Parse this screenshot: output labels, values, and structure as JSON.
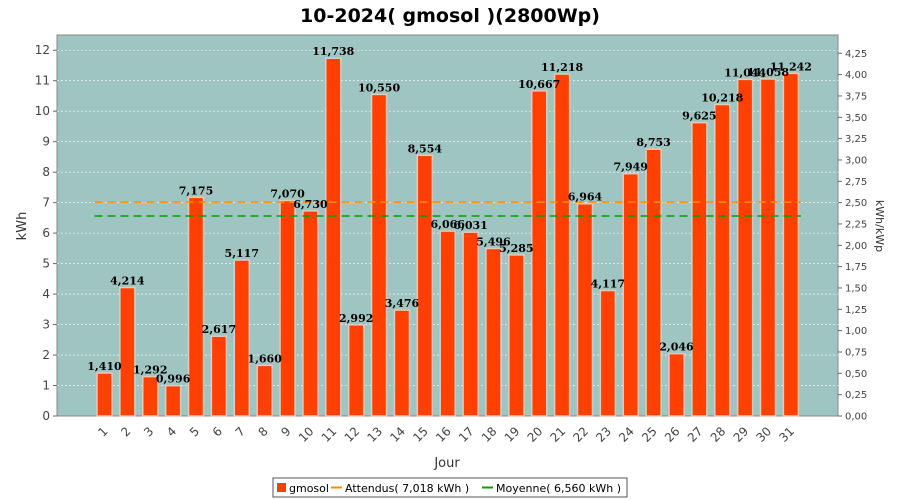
{
  "chart_data": {
    "type": "bar",
    "title": "10-2024( gmosol )(2800Wp)",
    "xlabel": "Jour",
    "ylabel": "kWh",
    "ylabel_right": "kWh/kWp",
    "ylim": [
      0,
      12.5
    ],
    "ylim_right": [
      0,
      4.464
    ],
    "yticks": [
      "0",
      "1",
      "2",
      "3",
      "4",
      "5",
      "6",
      "7",
      "8",
      "9",
      "10",
      "11",
      "12"
    ],
    "yticks_right": [
      "0,00",
      "0,25",
      "0,50",
      "0,75",
      "1,00",
      "1,25",
      "1,50",
      "1,75",
      "2,00",
      "2,25",
      "2,50",
      "2,75",
      "3,00",
      "3,25",
      "3,50",
      "3,75",
      "4,00",
      "4,25"
    ],
    "grid": true,
    "legend_position": "bottom",
    "categories": [
      "1",
      "2",
      "3",
      "4",
      "5",
      "6",
      "7",
      "8",
      "9",
      "10",
      "11",
      "12",
      "13",
      "14",
      "15",
      "16",
      "17",
      "18",
      "19",
      "20",
      "21",
      "22",
      "23",
      "24",
      "25",
      "26",
      "27",
      "28",
      "29",
      "30",
      "31"
    ],
    "series": [
      {
        "name": "gmosol",
        "type": "bar",
        "color": "#ff4000",
        "values": [
          1.41,
          4.214,
          1.292,
          0.996,
          7.175,
          2.617,
          5.117,
          1.66,
          7.07,
          6.73,
          11.738,
          2.992,
          10.55,
          3.476,
          8.554,
          6.066,
          6.031,
          5.496,
          5.285,
          10.667,
          11.218,
          6.964,
          4.117,
          7.949,
          8.753,
          2.046,
          9.625,
          10.218,
          11.044,
          11.058,
          11.242
        ],
        "labels": [
          "1,410",
          "4,214",
          "1,292",
          "0,996",
          "7,175",
          "2,617",
          "5,117",
          "1,660",
          "7,070",
          "6,730",
          "11,738",
          "2,992",
          "10,550",
          "3,476",
          "8,554",
          "6,066",
          "6,031",
          "5,496",
          "5,285",
          "10,667",
          "11,218",
          "6,964",
          "4,117",
          "7,949",
          "8,753",
          "2,046",
          "9,625",
          "10,218",
          "11,044",
          "11,058",
          "11,242"
        ]
      },
      {
        "name": "Attendus( 7,018 kWh )",
        "type": "line",
        "color": "#ff8c00",
        "value": 7.018
      },
      {
        "name": "Moyenne( 6,560 kWh )",
        "type": "line",
        "color": "#00a000",
        "value": 6.56
      }
    ],
    "colors": {
      "plot_background": "#9fc5c2",
      "bar": "#ff4000",
      "bar_edge": "#e8c8b8"
    }
  }
}
